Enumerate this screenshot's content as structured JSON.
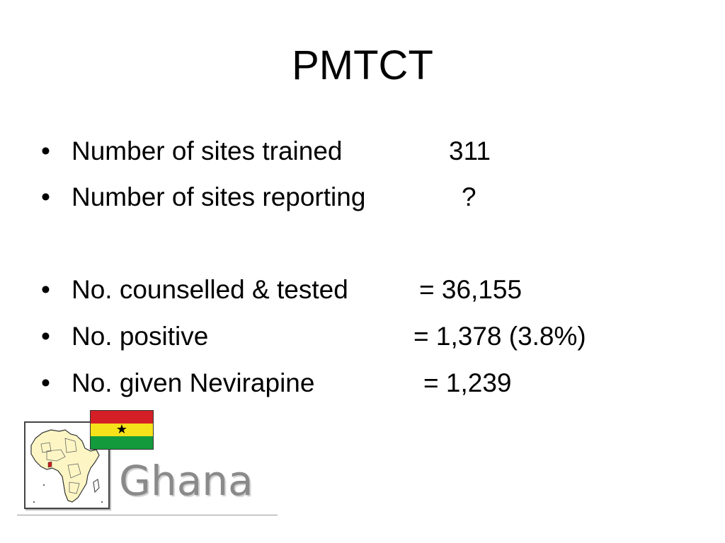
{
  "slide": {
    "title": "PMTCT",
    "bullet_char": "•",
    "bullets": [
      {
        "label": "Number of sites trained",
        "value": "311"
      },
      {
        "label": "Number of sites reporting",
        "value": "?"
      },
      {
        "label": "No. counselled & tested",
        "value": "=  36,155"
      },
      {
        "label": "No. positive",
        "value": "=  1,378 (3.8%)"
      },
      {
        "label": "No. given Nevirapine",
        "value": "= 1,239"
      }
    ]
  },
  "logo": {
    "word": "Ghana",
    "flag_colors": {
      "red": "#d41f26",
      "yellow": "#f5e21a",
      "green": "#139a3c",
      "star": "#000000"
    },
    "map_fill": "#fdf6c4",
    "map_highlight": "#c81e1e"
  }
}
